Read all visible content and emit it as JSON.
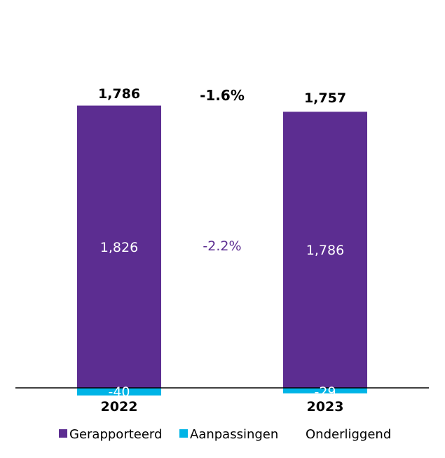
{
  "chart_data": {
    "type": "bar",
    "stacked": true,
    "categories": [
      "2022",
      "2023"
    ],
    "series": [
      {
        "name": "Gerapporteerd",
        "color": "#5c2d91",
        "values": [
          1826,
          1786
        ],
        "labels": [
          "1,826",
          "1,786"
        ]
      },
      {
        "name": "Aanpassingen",
        "color": "#00b4e6",
        "values": [
          -40,
          -29
        ],
        "labels": [
          "-40",
          "-29"
        ]
      },
      {
        "name": "Onderliggend",
        "color": "#ffffff",
        "values": [
          1786,
          1757
        ],
        "labels": [
          "1,786",
          "1,757"
        ]
      }
    ],
    "change_labels": {
      "underlying": "-1.6%",
      "reported": "-2.2%"
    },
    "legend_position": "bottom",
    "xlabel": "",
    "ylabel": "",
    "grid": false
  }
}
